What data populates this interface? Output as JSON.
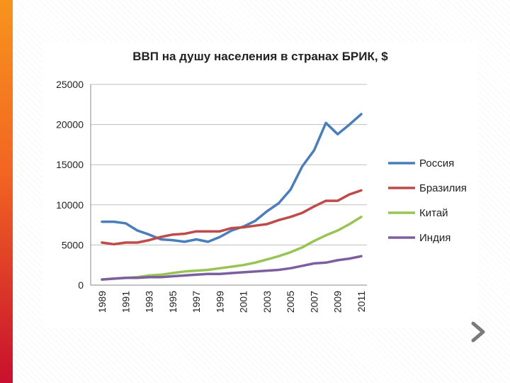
{
  "slide": {
    "accent_gradient": [
      "#f7941d",
      "#f26522",
      "#c8102e"
    ],
    "nav_icon": "chevron-right-icon"
  },
  "chart_data": {
    "type": "line",
    "title": "ВВП на душу населения в странах БРИК, $",
    "xlabel": "",
    "ylabel": "",
    "ylim": [
      0,
      25000
    ],
    "yticks": [
      0,
      5000,
      10000,
      15000,
      20000,
      25000
    ],
    "x": [
      1989,
      1990,
      1991,
      1992,
      1993,
      1994,
      1995,
      1996,
      1997,
      1998,
      1999,
      2000,
      2001,
      2002,
      2003,
      2004,
      2005,
      2006,
      2007,
      2008,
      2009,
      2010,
      2011
    ],
    "xtick_labels": [
      "1989",
      "1991",
      "1993",
      "1995",
      "1997",
      "1999",
      "2001",
      "2003",
      "2005",
      "2007",
      "2009",
      "2011"
    ],
    "grid": "horizontal",
    "legend_position": "right",
    "series": [
      {
        "name": "Россия",
        "color": "#4a7ebb",
        "values": [
          7900,
          7900,
          7700,
          6800,
          6300,
          5700,
          5600,
          5400,
          5700,
          5400,
          6000,
          6800,
          7300,
          8000,
          9200,
          10200,
          11900,
          14800,
          16800,
          20200,
          18800,
          20000,
          21300
        ]
      },
      {
        "name": "Бразилия",
        "color": "#be4b48",
        "values": [
          5300,
          5100,
          5300,
          5300,
          5600,
          6000,
          6300,
          6400,
          6700,
          6700,
          6700,
          7100,
          7200,
          7400,
          7600,
          8100,
          8500,
          9000,
          9800,
          10500,
          10500,
          11300,
          11800
        ]
      },
      {
        "name": "Китай",
        "color": "#98c455",
        "values": [
          700,
          800,
          900,
          1000,
          1200,
          1300,
          1500,
          1700,
          1800,
          1900,
          2100,
          2300,
          2500,
          2800,
          3200,
          3600,
          4100,
          4700,
          5500,
          6200,
          6800,
          7600,
          8500
        ]
      },
      {
        "name": "Индия",
        "color": "#7d5fa0",
        "values": [
          700,
          800,
          900,
          900,
          1000,
          1000,
          1100,
          1200,
          1300,
          1400,
          1400,
          1500,
          1600,
          1700,
          1800,
          1900,
          2100,
          2400,
          2700,
          2800,
          3100,
          3300,
          3600
        ]
      }
    ]
  }
}
